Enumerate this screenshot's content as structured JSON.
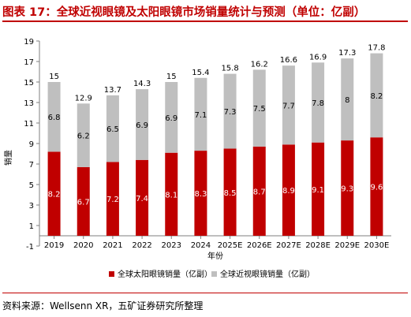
{
  "title": "图表 17：全球近视眼镜及太阳眼镜市场销量统计与预测（单位：亿副）",
  "source": "资料来源：Wellsenn XR，五矿证券研究所整理",
  "colors": {
    "red": "#c00000",
    "gray": "#bfbfbf",
    "axis": "#7f7f7f"
  },
  "chart_data": {
    "type": "bar",
    "stacked": true,
    "categories": [
      "2019",
      "2020",
      "2021",
      "2022",
      "2023",
      "2024",
      "2025E",
      "2026E",
      "2027E",
      "2028E",
      "2029E",
      "2030E"
    ],
    "series": [
      {
        "name": "全球太阳眼镜销量（亿副）",
        "values": [
          8.2,
          6.7,
          7.2,
          7.4,
          8.1,
          8.3,
          8.5,
          8.7,
          8.9,
          9.1,
          9.3,
          9.6
        ],
        "color": "#c00000"
      },
      {
        "name": "全球近视眼镜销量（亿副）",
        "values": [
          6.8,
          6.2,
          6.5,
          6.9,
          6.9,
          7.1,
          7.3,
          7.5,
          7.7,
          7.8,
          8,
          8.2
        ],
        "color": "#bfbfbf"
      }
    ],
    "totals": [
      "15",
      "12.9",
      "13.7",
      "14.3",
      "15",
      "15.4",
      "15.8",
      "16.2",
      "16.6",
      "16.9",
      "17.3",
      "17.8"
    ],
    "xlabel": "年份",
    "ylabel": "销量",
    "ylim": [
      -1,
      19
    ],
    "yticks": [
      -1,
      1,
      3,
      5,
      7,
      9,
      11,
      13,
      15,
      17,
      19
    ],
    "grid": false,
    "legend": "bottom"
  }
}
